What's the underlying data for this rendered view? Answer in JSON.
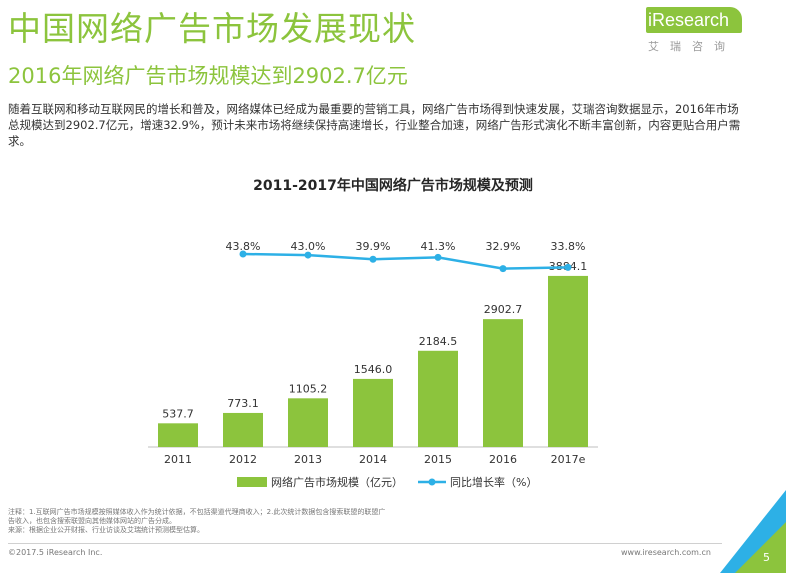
{
  "header": {
    "title": "中国网络广告市场发展现状",
    "subtitle": "2016年网络广告市场规模达到2902.7亿元"
  },
  "brand": {
    "logo_text": "iResearch",
    "logo_sub": "艾瑞咨询",
    "accent_color": "#8cc43d",
    "line_color": "#2db0e6"
  },
  "intro_text": "随着互联网和移动互联网民的增长和普及，网络媒体已经成为最重要的营销工具，网络广告市场得到快速发展，艾瑞咨询数据显示，2016年市场总规模达到2902.7亿元，增速32.9%，预计未来市场将继续保持高速增长，行业整合加速，网络广告形式演化不断丰富创新，内容更贴合用户需求。",
  "chart_data": {
    "type": "bar",
    "title": "2011-2017年中国网络广告市场规模及预测",
    "categories": [
      "2011",
      "2012",
      "2013",
      "2014",
      "2015",
      "2016",
      "2017e"
    ],
    "series": [
      {
        "name": "网络广告市场规模（亿元）",
        "type": "bar",
        "values": [
          537.7,
          773.1,
          1105.2,
          1546.0,
          2184.5,
          2902.7,
          3884.1
        ],
        "labels": [
          "537.7",
          "773.1",
          "1105.2",
          "1546.0",
          "2184.5",
          "2902.7",
          "3884.1"
        ]
      },
      {
        "name": "同比增长率（%）",
        "type": "line",
        "values": [
          43.8,
          43.0,
          39.9,
          41.3,
          32.9,
          33.8
        ],
        "x": [
          "2012",
          "2013",
          "2014",
          "2015",
          "2016",
          "2017e"
        ],
        "labels": [
          "43.8%",
          "43.0%",
          "39.9%",
          "41.3%",
          "32.9%",
          "33.8%"
        ]
      }
    ],
    "ylim": [
      0,
      4200
    ],
    "grid": false,
    "legend": "bottom"
  },
  "notes": {
    "line1": "注释：1.互联网广告市场规模按照媒体收入作为统计依据，不包括渠道代理商收入；2.此次统计数据包含搜索联盟的联盟广",
    "line2": "告收入，也包含搜索联盟向其他媒体网站的广告分成。",
    "line3": "来源：根据企业公开财报、行业访谈及艾瑞统计预测模型估算。"
  },
  "footer": {
    "copyright": "©2017.5 iResearch Inc.",
    "website": "www.iresearch.com.cn",
    "page": "5"
  }
}
